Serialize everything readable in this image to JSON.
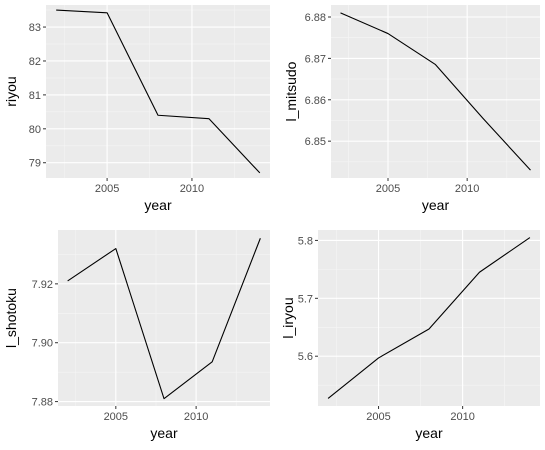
{
  "colors": {
    "panel_background": "#ebebeb",
    "grid_major": "#ffffff",
    "grid_minor": "#f5f5f5",
    "line": "#000000",
    "tick_label": "#4d4d4d"
  },
  "chart_data": [
    {
      "type": "line",
      "title": "",
      "xlabel": "year",
      "ylabel": "riyou",
      "x": [
        2002,
        2005,
        2008,
        2011,
        2014
      ],
      "series": [
        {
          "values": [
            83.5,
            83.42,
            80.4,
            80.3,
            78.7
          ]
        }
      ],
      "xlim": [
        2001.4,
        2014.6
      ],
      "ylim": [
        78.55,
        83.65
      ],
      "xticks": [
        2005,
        2010
      ],
      "xtick_labels": [
        "2005",
        "2010"
      ],
      "yticks": [
        79,
        80,
        81,
        82,
        83
      ],
      "ytick_labels": [
        "79",
        "80",
        "81",
        "82",
        "83"
      ],
      "grid": true,
      "legend": "none"
    },
    {
      "type": "line",
      "title": "",
      "xlabel": "year",
      "ylabel": "l_mitsudo",
      "x": [
        2002,
        2005,
        2008,
        2011,
        2014
      ],
      "series": [
        {
          "values": [
            6.881,
            6.876,
            6.8685,
            6.8555,
            6.843
          ]
        }
      ],
      "xlim": [
        2001.4,
        2014.6
      ],
      "ylim": [
        6.8411,
        6.8829
      ],
      "xticks": [
        2005,
        2010
      ],
      "xtick_labels": [
        "2005",
        "2010"
      ],
      "yticks": [
        6.85,
        6.86,
        6.87,
        6.88
      ],
      "ytick_labels": [
        "6.85",
        "6.86",
        "6.87",
        "6.88"
      ],
      "grid": true,
      "legend": "none"
    },
    {
      "type": "line",
      "title": "",
      "xlabel": "year",
      "ylabel": "l_shotoku",
      "x": [
        2002,
        2005,
        2008,
        2011,
        2014
      ],
      "series": [
        {
          "values": [
            7.921,
            7.932,
            7.881,
            7.8935,
            7.9355
          ]
        }
      ],
      "xlim": [
        2001.4,
        2014.6
      ],
      "ylim": [
        7.8785,
        7.9383
      ],
      "xticks": [
        2005,
        2010
      ],
      "xtick_labels": [
        "2005",
        "2010"
      ],
      "yticks": [
        7.88,
        7.9,
        7.92
      ],
      "ytick_labels": [
        "7.88",
        "7.90",
        "7.92"
      ],
      "grid": true,
      "legend": "none"
    },
    {
      "type": "line",
      "title": "",
      "xlabel": "year",
      "ylabel": "l_iryou",
      "x": [
        2002,
        2005,
        2008,
        2011,
        2014
      ],
      "series": [
        {
          "values": [
            5.527,
            5.597,
            5.647,
            5.745,
            5.805
          ]
        }
      ],
      "xlim": [
        2001.4,
        2014.6
      ],
      "ylim": [
        5.514,
        5.818
      ],
      "xticks": [
        2005,
        2010
      ],
      "xtick_labels": [
        "2005",
        "2010"
      ],
      "yticks": [
        5.6,
        5.7,
        5.8
      ],
      "ytick_labels": [
        "5.6",
        "5.7",
        "5.8"
      ],
      "grid": true,
      "legend": "none"
    }
  ]
}
